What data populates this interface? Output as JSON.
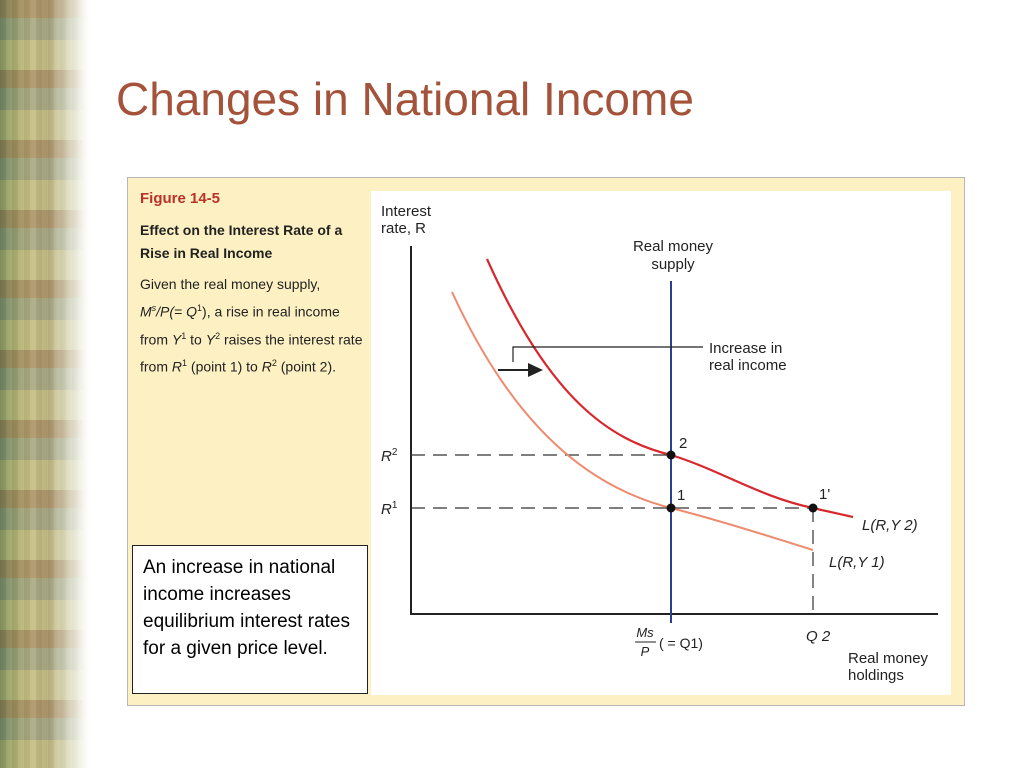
{
  "slide": {
    "title": "Changes in National Income"
  },
  "figure": {
    "number": "Figure 14-5",
    "title": "Effect on the Interest Rate of a Rise in Real Income",
    "description": {
      "p1": "Given the real money supply, ",
      "ms": "M",
      "ms_sup": "s",
      "slash_p": "/P(= Q",
      "q_sup": "1",
      "p2": "), a rise in real income from ",
      "y1": "Y",
      "y1_sup": "1",
      "to1": " to ",
      "y2": "Y",
      "y2_sup": "2",
      "p3": " raises the interest rate from ",
      "r1": "R",
      "r1_sup": "1",
      "p4": " (point 1) to ",
      "r2": "R",
      "r2_sup": "2",
      "p5": " (point 2)."
    }
  },
  "graph": {
    "y_axis_label_line1": "Interest",
    "y_axis_label_line2": "rate, R",
    "x_axis_label_line1": "Real money",
    "x_axis_label_line2": "holdings",
    "supply_label_line1": "Real money",
    "supply_label_line2": "supply",
    "arrow_label_line1": "Increase in",
    "arrow_label_line2": "real income",
    "r2_tick": "R",
    "r2_tick_sup": "2",
    "r1_tick": "R",
    "r1_tick_sup": "1",
    "point_2": "2",
    "point_1": "1",
    "point_1p": "1'",
    "curve_y2_label": "L(R,Y 2)",
    "curve_y1_label": "L(R,Y 1)",
    "ms_tick_num": "Ms",
    "ms_tick_den": "P",
    "ms_tick_eq": "( = Q1)",
    "q2_tick": "Q 2",
    "colors": {
      "money_supply": "#2c3e91",
      "demand_y2": "#d8272d",
      "demand_y1": "#ef8a6e"
    }
  },
  "callout": {
    "text": "An increase in national income increases equilibrium interest rates for a given price level."
  }
}
